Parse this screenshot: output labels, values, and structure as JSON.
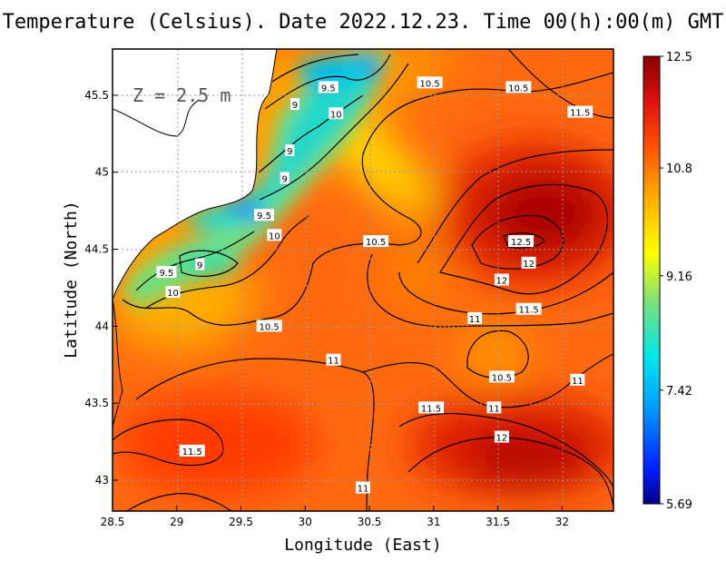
{
  "title": "Temperature (Celsius). Date 2022.12.23. Time 00(h):00(m) GMT",
  "depth_label": "Z = 2.5 m",
  "xlabel": "Longitude (East)",
  "ylabel": "Latitude (North)",
  "colors": {
    "background": "#ffffff",
    "land_outline": "#000000",
    "contour": "#000000",
    "grid": "#9a9a9a"
  },
  "chart_data": {
    "type": "heatmap",
    "title": "Temperature (Celsius). Date 2022.12.23. Time 00(h):00(m) GMT",
    "xlabel": "Longitude (East)",
    "ylabel": "Latitude (North)",
    "xlim": [
      28.5,
      32.4
    ],
    "ylim": [
      42.8,
      45.8
    ],
    "x_ticks": [
      28.5,
      29,
      29.5,
      30,
      30.5,
      31,
      31.5,
      32
    ],
    "x_tick_labels": [
      "28.5",
      "29",
      "29.5",
      "30",
      "30.5",
      "31",
      "31.5",
      "32"
    ],
    "y_ticks": [
      43,
      43.5,
      44,
      44.5,
      45,
      45.5
    ],
    "y_tick_labels": [
      "43",
      "43.5",
      "44",
      "44.5",
      "45",
      "45.5"
    ],
    "grid": true,
    "colorbar": {
      "min": 5.69,
      "max": 12.5,
      "ticks": [
        12.5,
        10.8,
        9.16,
        7.42,
        5.69
      ],
      "tick_labels": [
        "12.5",
        "10.8",
        "9.16",
        "7.42",
        "5.69"
      ],
      "placement": "right"
    },
    "contour_labels": [
      {
        "text": "9.5",
        "lon": 30.18,
        "lat": 45.55
      },
      {
        "text": "10.5",
        "lon": 30.97,
        "lat": 45.58
      },
      {
        "text": "10.5",
        "lon": 31.66,
        "lat": 45.55
      },
      {
        "text": "11.5",
        "lon": 32.14,
        "lat": 45.39
      },
      {
        "text": "9",
        "lon": 29.92,
        "lat": 45.44
      },
      {
        "text": "10",
        "lon": 30.24,
        "lat": 45.38
      },
      {
        "text": "9",
        "lon": 29.88,
        "lat": 45.14
      },
      {
        "text": "9",
        "lon": 29.84,
        "lat": 44.96
      },
      {
        "text": "9.5",
        "lon": 29.68,
        "lat": 44.72
      },
      {
        "text": "10",
        "lon": 29.76,
        "lat": 44.59
      },
      {
        "text": "10.5",
        "lon": 30.55,
        "lat": 44.55
      },
      {
        "text": "9",
        "lon": 29.18,
        "lat": 44.4
      },
      {
        "text": "9.5",
        "lon": 28.92,
        "lat": 44.35
      },
      {
        "text": "10",
        "lon": 28.97,
        "lat": 44.22
      },
      {
        "text": "12.5",
        "lon": 31.68,
        "lat": 44.55
      },
      {
        "text": "12",
        "lon": 31.74,
        "lat": 44.41
      },
      {
        "text": "12",
        "lon": 31.53,
        "lat": 44.3
      },
      {
        "text": "11.5",
        "lon": 31.74,
        "lat": 44.11
      },
      {
        "text": "11",
        "lon": 31.32,
        "lat": 44.05
      },
      {
        "text": "10.5",
        "lon": 29.72,
        "lat": 44.0
      },
      {
        "text": "11",
        "lon": 30.22,
        "lat": 43.78
      },
      {
        "text": "10.5",
        "lon": 31.53,
        "lat": 43.67
      },
      {
        "text": "11",
        "lon": 32.12,
        "lat": 43.65
      },
      {
        "text": "11.5",
        "lon": 30.98,
        "lat": 43.47
      },
      {
        "text": "11",
        "lon": 31.47,
        "lat": 43.47
      },
      {
        "text": "12",
        "lon": 31.53,
        "lat": 43.28
      },
      {
        "text": "11.5",
        "lon": 29.12,
        "lat": 43.19
      },
      {
        "text": "11",
        "lon": 30.45,
        "lat": 42.95
      }
    ]
  }
}
